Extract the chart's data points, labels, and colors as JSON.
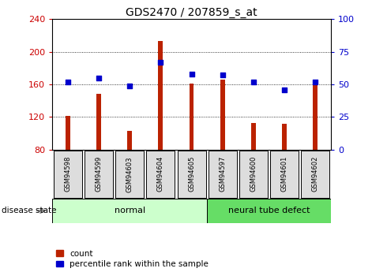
{
  "title": "GDS2470 / 207859_s_at",
  "samples": [
    "GSM94598",
    "GSM94599",
    "GSM94603",
    "GSM94604",
    "GSM94605",
    "GSM94597",
    "GSM94600",
    "GSM94601",
    "GSM94602"
  ],
  "counts": [
    121,
    148,
    103,
    213,
    161,
    166,
    113,
    112,
    162
  ],
  "percentiles": [
    52,
    55,
    49,
    67,
    58,
    57,
    52,
    46,
    52
  ],
  "bar_color": "#bb2200",
  "dot_color": "#0000cc",
  "ylim_left": [
    80,
    240
  ],
  "ylim_right": [
    0,
    100
  ],
  "yticks_left": [
    80,
    120,
    160,
    200,
    240
  ],
  "yticks_right": [
    0,
    25,
    50,
    75,
    100
  ],
  "ylabel_left_color": "#cc0000",
  "ylabel_right_color": "#0000cc",
  "legend_items": [
    "count",
    "percentile rank within the sample"
  ],
  "disease_state_label": "disease state",
  "normal_color": "#ccffcc",
  "ntd_color": "#66dd66",
  "xlabel_box_color": "#dddddd",
  "title_fontsize": 10,
  "axis_fontsize": 8,
  "bar_width": 0.15
}
